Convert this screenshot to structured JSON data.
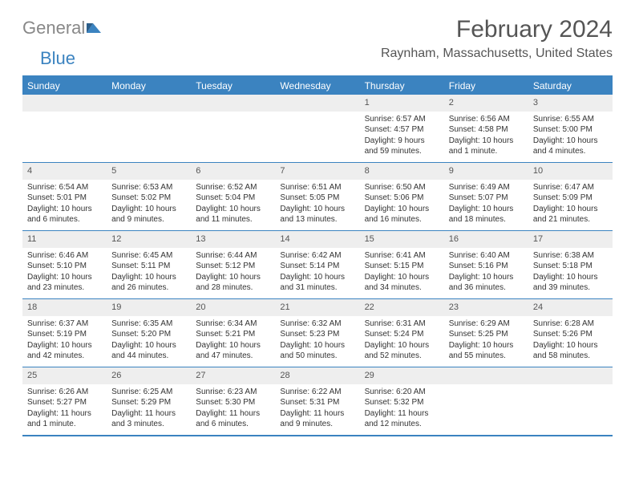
{
  "logo": {
    "part1": "General",
    "part2": "Blue"
  },
  "title": "February 2024",
  "location": "Raynham, Massachusetts, United States",
  "colors": {
    "accent": "#3b83c0",
    "header_text": "#ffffff",
    "daynum_bg": "#eeeeee",
    "text": "#333333",
    "muted": "#555555",
    "logo_gray": "#888888"
  },
  "weekdays": [
    "Sunday",
    "Monday",
    "Tuesday",
    "Wednesday",
    "Thursday",
    "Friday",
    "Saturday"
  ],
  "weeks": [
    [
      {
        "num": "",
        "sunrise": "",
        "sunset": "",
        "daylight1": "",
        "daylight2": ""
      },
      {
        "num": "",
        "sunrise": "",
        "sunset": "",
        "daylight1": "",
        "daylight2": ""
      },
      {
        "num": "",
        "sunrise": "",
        "sunset": "",
        "daylight1": "",
        "daylight2": ""
      },
      {
        "num": "",
        "sunrise": "",
        "sunset": "",
        "daylight1": "",
        "daylight2": ""
      },
      {
        "num": "1",
        "sunrise": "Sunrise: 6:57 AM",
        "sunset": "Sunset: 4:57 PM",
        "daylight1": "Daylight: 9 hours",
        "daylight2": "and 59 minutes."
      },
      {
        "num": "2",
        "sunrise": "Sunrise: 6:56 AM",
        "sunset": "Sunset: 4:58 PM",
        "daylight1": "Daylight: 10 hours",
        "daylight2": "and 1 minute."
      },
      {
        "num": "3",
        "sunrise": "Sunrise: 6:55 AM",
        "sunset": "Sunset: 5:00 PM",
        "daylight1": "Daylight: 10 hours",
        "daylight2": "and 4 minutes."
      }
    ],
    [
      {
        "num": "4",
        "sunrise": "Sunrise: 6:54 AM",
        "sunset": "Sunset: 5:01 PM",
        "daylight1": "Daylight: 10 hours",
        "daylight2": "and 6 minutes."
      },
      {
        "num": "5",
        "sunrise": "Sunrise: 6:53 AM",
        "sunset": "Sunset: 5:02 PM",
        "daylight1": "Daylight: 10 hours",
        "daylight2": "and 9 minutes."
      },
      {
        "num": "6",
        "sunrise": "Sunrise: 6:52 AM",
        "sunset": "Sunset: 5:04 PM",
        "daylight1": "Daylight: 10 hours",
        "daylight2": "and 11 minutes."
      },
      {
        "num": "7",
        "sunrise": "Sunrise: 6:51 AM",
        "sunset": "Sunset: 5:05 PM",
        "daylight1": "Daylight: 10 hours",
        "daylight2": "and 13 minutes."
      },
      {
        "num": "8",
        "sunrise": "Sunrise: 6:50 AM",
        "sunset": "Sunset: 5:06 PM",
        "daylight1": "Daylight: 10 hours",
        "daylight2": "and 16 minutes."
      },
      {
        "num": "9",
        "sunrise": "Sunrise: 6:49 AM",
        "sunset": "Sunset: 5:07 PM",
        "daylight1": "Daylight: 10 hours",
        "daylight2": "and 18 minutes."
      },
      {
        "num": "10",
        "sunrise": "Sunrise: 6:47 AM",
        "sunset": "Sunset: 5:09 PM",
        "daylight1": "Daylight: 10 hours",
        "daylight2": "and 21 minutes."
      }
    ],
    [
      {
        "num": "11",
        "sunrise": "Sunrise: 6:46 AM",
        "sunset": "Sunset: 5:10 PM",
        "daylight1": "Daylight: 10 hours",
        "daylight2": "and 23 minutes."
      },
      {
        "num": "12",
        "sunrise": "Sunrise: 6:45 AM",
        "sunset": "Sunset: 5:11 PM",
        "daylight1": "Daylight: 10 hours",
        "daylight2": "and 26 minutes."
      },
      {
        "num": "13",
        "sunrise": "Sunrise: 6:44 AM",
        "sunset": "Sunset: 5:12 PM",
        "daylight1": "Daylight: 10 hours",
        "daylight2": "and 28 minutes."
      },
      {
        "num": "14",
        "sunrise": "Sunrise: 6:42 AM",
        "sunset": "Sunset: 5:14 PM",
        "daylight1": "Daylight: 10 hours",
        "daylight2": "and 31 minutes."
      },
      {
        "num": "15",
        "sunrise": "Sunrise: 6:41 AM",
        "sunset": "Sunset: 5:15 PM",
        "daylight1": "Daylight: 10 hours",
        "daylight2": "and 34 minutes."
      },
      {
        "num": "16",
        "sunrise": "Sunrise: 6:40 AM",
        "sunset": "Sunset: 5:16 PM",
        "daylight1": "Daylight: 10 hours",
        "daylight2": "and 36 minutes."
      },
      {
        "num": "17",
        "sunrise": "Sunrise: 6:38 AM",
        "sunset": "Sunset: 5:18 PM",
        "daylight1": "Daylight: 10 hours",
        "daylight2": "and 39 minutes."
      }
    ],
    [
      {
        "num": "18",
        "sunrise": "Sunrise: 6:37 AM",
        "sunset": "Sunset: 5:19 PM",
        "daylight1": "Daylight: 10 hours",
        "daylight2": "and 42 minutes."
      },
      {
        "num": "19",
        "sunrise": "Sunrise: 6:35 AM",
        "sunset": "Sunset: 5:20 PM",
        "daylight1": "Daylight: 10 hours",
        "daylight2": "and 44 minutes."
      },
      {
        "num": "20",
        "sunrise": "Sunrise: 6:34 AM",
        "sunset": "Sunset: 5:21 PM",
        "daylight1": "Daylight: 10 hours",
        "daylight2": "and 47 minutes."
      },
      {
        "num": "21",
        "sunrise": "Sunrise: 6:32 AM",
        "sunset": "Sunset: 5:23 PM",
        "daylight1": "Daylight: 10 hours",
        "daylight2": "and 50 minutes."
      },
      {
        "num": "22",
        "sunrise": "Sunrise: 6:31 AM",
        "sunset": "Sunset: 5:24 PM",
        "daylight1": "Daylight: 10 hours",
        "daylight2": "and 52 minutes."
      },
      {
        "num": "23",
        "sunrise": "Sunrise: 6:29 AM",
        "sunset": "Sunset: 5:25 PM",
        "daylight1": "Daylight: 10 hours",
        "daylight2": "and 55 minutes."
      },
      {
        "num": "24",
        "sunrise": "Sunrise: 6:28 AM",
        "sunset": "Sunset: 5:26 PM",
        "daylight1": "Daylight: 10 hours",
        "daylight2": "and 58 minutes."
      }
    ],
    [
      {
        "num": "25",
        "sunrise": "Sunrise: 6:26 AM",
        "sunset": "Sunset: 5:27 PM",
        "daylight1": "Daylight: 11 hours",
        "daylight2": "and 1 minute."
      },
      {
        "num": "26",
        "sunrise": "Sunrise: 6:25 AM",
        "sunset": "Sunset: 5:29 PM",
        "daylight1": "Daylight: 11 hours",
        "daylight2": "and 3 minutes."
      },
      {
        "num": "27",
        "sunrise": "Sunrise: 6:23 AM",
        "sunset": "Sunset: 5:30 PM",
        "daylight1": "Daylight: 11 hours",
        "daylight2": "and 6 minutes."
      },
      {
        "num": "28",
        "sunrise": "Sunrise: 6:22 AM",
        "sunset": "Sunset: 5:31 PM",
        "daylight1": "Daylight: 11 hours",
        "daylight2": "and 9 minutes."
      },
      {
        "num": "29",
        "sunrise": "Sunrise: 6:20 AM",
        "sunset": "Sunset: 5:32 PM",
        "daylight1": "Daylight: 11 hours",
        "daylight2": "and 12 minutes."
      },
      {
        "num": "",
        "sunrise": "",
        "sunset": "",
        "daylight1": "",
        "daylight2": ""
      },
      {
        "num": "",
        "sunrise": "",
        "sunset": "",
        "daylight1": "",
        "daylight2": ""
      }
    ]
  ]
}
